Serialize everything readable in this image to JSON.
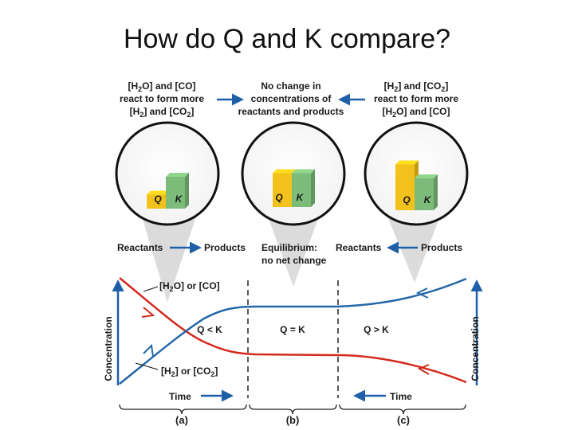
{
  "slide": {
    "title": "How do Q and K compare?"
  },
  "panels": [
    {
      "caption_lines": [
        "[H2O] and [CO]",
        "react to form more",
        "[H2] and [CO2]"
      ],
      "q_label": "Q",
      "k_label": "K",
      "arrow_left": "Reactants",
      "arrow_right": "Products",
      "bottom_label": "(a)",
      "q_level": 0.35,
      "k_level": 0.8
    },
    {
      "caption_lines": [
        "No change in",
        "concentrations of",
        "reactants and products"
      ],
      "q_label": "Q",
      "k_label": "K",
      "status_lines": [
        "Equilibrium:",
        "no net change"
      ],
      "bottom_label": "(b)",
      "q_level": 0.85,
      "k_level": 0.85
    },
    {
      "caption_lines": [
        "[H2] and [CO2]",
        "react to form more",
        "[H2O] and [CO]"
      ],
      "q_label": "Q",
      "k_label": "K",
      "arrow_left": "Reactants",
      "arrow_right": "Products",
      "bottom_label": "(c)",
      "q_level": 1.15,
      "k_level": 0.8
    }
  ],
  "graph": {
    "y_axis_label": "Concentration",
    "curve_top_label": "[H2O] or [CO]",
    "curve_bottom_label": "[H2] or [CO2]",
    "region_labels": [
      "Q < K",
      "Q = K",
      "Q > K"
    ],
    "time_label_left": "Time",
    "time_label_right": "Time"
  },
  "colors": {
    "reactant_curve": "#d32a1e",
    "product_curve": "#2467a8",
    "q_bar": "#f3c11b",
    "k_bar": "#7dbb7a",
    "arrow": "#1f5fa8"
  }
}
